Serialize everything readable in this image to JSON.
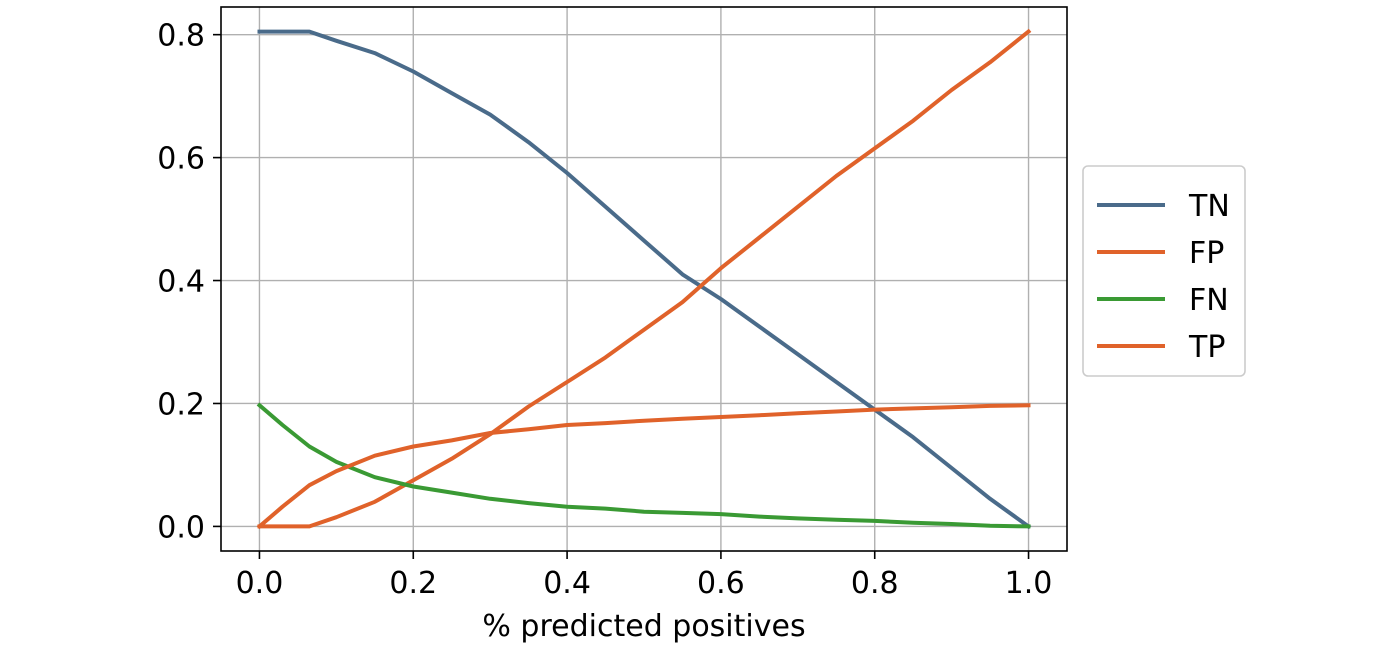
{
  "chart_data": {
    "type": "line",
    "title": "",
    "xlabel": "% predicted positives",
    "ylabel": "",
    "xlim": [
      -0.05,
      1.05
    ],
    "ylim": [
      -0.04,
      0.845
    ],
    "xticks": [
      0.0,
      0.2,
      0.4,
      0.6,
      0.8,
      1.0
    ],
    "xtick_labels": [
      "0.0",
      "0.2",
      "0.4",
      "0.6",
      "0.8",
      "1.0"
    ],
    "yticks": [
      0.0,
      0.2,
      0.4,
      0.6,
      0.8
    ],
    "ytick_labels": [
      "0.0",
      "0.2",
      "0.4",
      "0.6",
      "0.8"
    ],
    "grid": true,
    "legend_position": "outside-right",
    "series": [
      {
        "name": "TN",
        "color": "#4a6b8a",
        "x": [
          0.0,
          0.065,
          0.1,
          0.15,
          0.2,
          0.25,
          0.3,
          0.35,
          0.4,
          0.45,
          0.5,
          0.55,
          0.6,
          0.65,
          0.7,
          0.75,
          0.8,
          0.85,
          0.9,
          0.95,
          1.0
        ],
        "y": [
          0.805,
          0.805,
          0.79,
          0.77,
          0.74,
          0.705,
          0.67,
          0.625,
          0.575,
          0.52,
          0.465,
          0.41,
          0.37,
          0.325,
          0.28,
          0.235,
          0.19,
          0.145,
          0.095,
          0.045,
          0.0
        ]
      },
      {
        "name": "FP",
        "color": "#e0622a",
        "x": [
          0.0,
          0.065,
          0.1,
          0.15,
          0.2,
          0.25,
          0.3,
          0.35,
          0.4,
          0.45,
          0.5,
          0.55,
          0.6,
          0.65,
          0.7,
          0.75,
          0.8,
          0.85,
          0.9,
          0.95,
          1.0
        ],
        "y": [
          0.0,
          0.0,
          0.015,
          0.04,
          0.075,
          0.11,
          0.15,
          0.195,
          0.235,
          0.275,
          0.32,
          0.365,
          0.42,
          0.47,
          0.52,
          0.57,
          0.615,
          0.66,
          0.71,
          0.755,
          0.805
        ]
      },
      {
        "name": "FN",
        "color": "#3a9a34",
        "x": [
          0.0,
          0.03,
          0.065,
          0.1,
          0.15,
          0.2,
          0.25,
          0.3,
          0.35,
          0.4,
          0.45,
          0.5,
          0.55,
          0.6,
          0.65,
          0.7,
          0.75,
          0.8,
          0.85,
          0.9,
          0.95,
          1.0
        ],
        "y": [
          0.197,
          0.165,
          0.13,
          0.105,
          0.08,
          0.065,
          0.055,
          0.045,
          0.038,
          0.032,
          0.029,
          0.024,
          0.022,
          0.02,
          0.016,
          0.013,
          0.011,
          0.009,
          0.006,
          0.004,
          0.001,
          0.0
        ]
      },
      {
        "name": "TP",
        "color": "#e0622a",
        "x": [
          0.0,
          0.03,
          0.065,
          0.1,
          0.15,
          0.2,
          0.25,
          0.3,
          0.35,
          0.4,
          0.45,
          0.5,
          0.55,
          0.6,
          0.65,
          0.7,
          0.75,
          0.8,
          0.85,
          0.9,
          0.95,
          1.0
        ],
        "y": [
          0.0,
          0.032,
          0.067,
          0.09,
          0.115,
          0.13,
          0.14,
          0.152,
          0.158,
          0.165,
          0.168,
          0.172,
          0.175,
          0.178,
          0.181,
          0.184,
          0.187,
          0.19,
          0.192,
          0.194,
          0.196,
          0.197
        ]
      }
    ]
  }
}
